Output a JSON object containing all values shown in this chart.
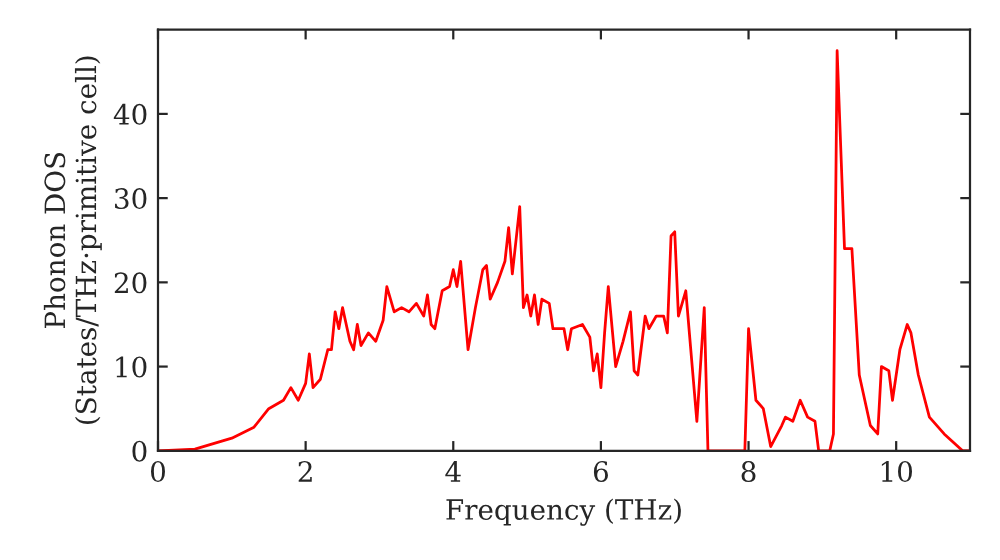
{
  "chart_data": {
    "type": "line",
    "xlabel": "Frequency (THz)",
    "ylabel": "Phonon DOS\n(States/THz·primitive cell)",
    "xlim": [
      0,
      11
    ],
    "ylim": [
      0,
      50
    ],
    "xticks": [
      0,
      2,
      4,
      6,
      8,
      10
    ],
    "yticks": [
      0,
      10,
      20,
      30,
      40
    ],
    "grid": false,
    "legend": false,
    "series": [
      {
        "color": "#ff0000",
        "x": [
          0,
          0.5,
          1.0,
          1.3,
          1.5,
          1.7,
          1.8,
          1.9,
          2.0,
          2.05,
          2.1,
          2.2,
          2.3,
          2.35,
          2.4,
          2.45,
          2.5,
          2.6,
          2.65,
          2.7,
          2.75,
          2.85,
          2.95,
          3.05,
          3.1,
          3.2,
          3.3,
          3.4,
          3.5,
          3.6,
          3.65,
          3.7,
          3.75,
          3.85,
          3.95,
          4.0,
          4.05,
          4.1,
          4.2,
          4.3,
          4.4,
          4.45,
          4.5,
          4.6,
          4.7,
          4.75,
          4.8,
          4.9,
          4.95,
          5.0,
          5.05,
          5.1,
          5.15,
          5.2,
          5.3,
          5.35,
          5.5,
          5.55,
          5.6,
          5.75,
          5.85,
          5.9,
          5.95,
          6.0,
          6.05,
          6.1,
          6.2,
          6.3,
          6.4,
          6.45,
          6.5,
          6.6,
          6.65,
          6.75,
          6.85,
          6.9,
          6.95,
          7.0,
          7.05,
          7.15,
          7.3,
          7.4,
          7.45,
          7.95,
          8.0,
          8.1,
          8.2,
          8.3,
          8.45,
          8.5,
          8.6,
          8.7,
          8.8,
          8.9,
          8.95,
          9.1,
          9.15,
          9.2,
          9.3,
          9.4,
          9.5,
          9.65,
          9.75,
          9.8,
          9.9,
          9.95,
          10.05,
          10.15,
          10.2,
          10.3,
          10.45,
          10.65,
          10.9,
          11.0
        ],
        "values": [
          0,
          0.2,
          1.5,
          2.8,
          5,
          6,
          7.5,
          6,
          8,
          11.5,
          7.5,
          8.5,
          12,
          12,
          16.5,
          14.5,
          17,
          13,
          12,
          15,
          12.5,
          14,
          13,
          15.5,
          19.5,
          16.5,
          17,
          16.5,
          17.5,
          16,
          18.5,
          15,
          14.5,
          19,
          19.5,
          21.5,
          19.5,
          22.5,
          12,
          17,
          21.5,
          22,
          18,
          20,
          22.5,
          26.5,
          21,
          29,
          17,
          18.5,
          16,
          18.5,
          15,
          18,
          17.5,
          14.5,
          14.5,
          12,
          14.5,
          15,
          13.5,
          9.5,
          11.5,
          7.5,
          14,
          19.5,
          10,
          13,
          16.5,
          9.5,
          9,
          16,
          14.5,
          16,
          16,
          14,
          25.5,
          26,
          16,
          19,
          3.5,
          17,
          0,
          0,
          14.5,
          6,
          5,
          0.5,
          3,
          4,
          3.5,
          6,
          4,
          3.5,
          0,
          0,
          2,
          47.5,
          24,
          24,
          9,
          3,
          2,
          10,
          9.5,
          6,
          12,
          15,
          14,
          9,
          4,
          2,
          0,
          0
        ]
      }
    ]
  }
}
